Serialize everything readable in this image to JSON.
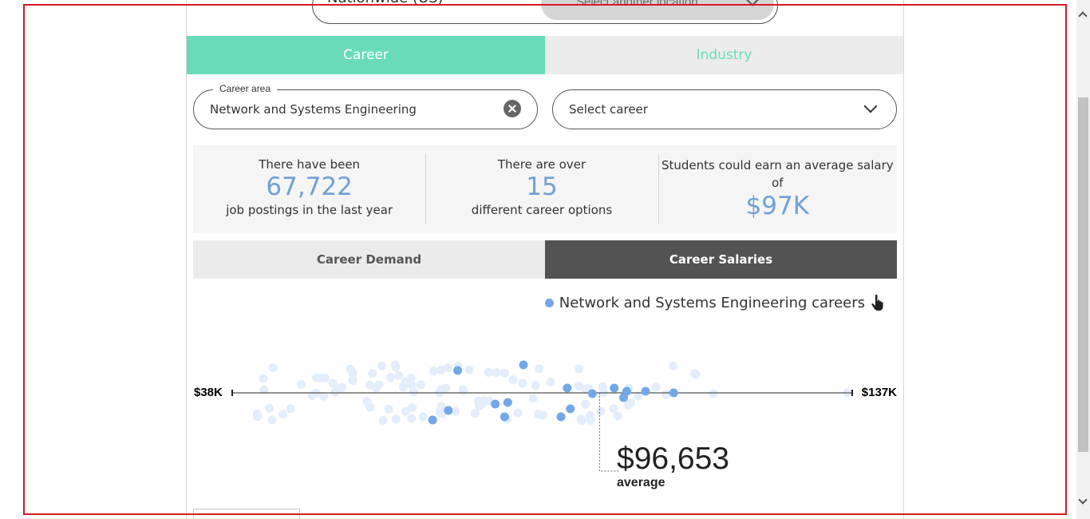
{
  "location": {
    "value": "Nationwide (US)",
    "select_label": "Select another location"
  },
  "top_tabs": [
    {
      "label": "Career",
      "active": true
    },
    {
      "label": "Industry",
      "active": false
    }
  ],
  "career_area": {
    "legend": "Career area",
    "value": "Network and Systems Engineering"
  },
  "career_select": {
    "label": "Select career"
  },
  "stats": [
    {
      "pre": "There have been",
      "value": "67,722",
      "post": "job postings in the last year"
    },
    {
      "pre": "There are over",
      "value": "15",
      "post": "different career options"
    },
    {
      "pre": "Students could earn an average salary of",
      "value": "$97K",
      "post": ""
    }
  ],
  "sub_tabs": [
    {
      "label": "Career Demand",
      "active": false
    },
    {
      "label": "Career Salaries",
      "active": true
    }
  ],
  "legend": {
    "label": "Network and Systems Engineering careers"
  },
  "colors": {
    "accent": "#69dbb9",
    "stat_blue": "#6fa1d8",
    "dot_highlight": "#73a8e8",
    "dot_faint": "#e3edfb",
    "active_subtab": "#535353"
  },
  "chart_data": {
    "type": "scatter",
    "axis_min_label": "$38K",
    "axis_max_label": "$137K",
    "xlim": [
      38000,
      137000
    ],
    "average_value": "$96,653",
    "average_label": "average",
    "average": 96653,
    "highlighted_salaries": [
      70000,
      72500,
      74000,
      80000,
      81500,
      82000,
      84500,
      90500,
      91500,
      92000,
      95500,
      99000,
      100500,
      101000,
      104000,
      108500
    ]
  }
}
